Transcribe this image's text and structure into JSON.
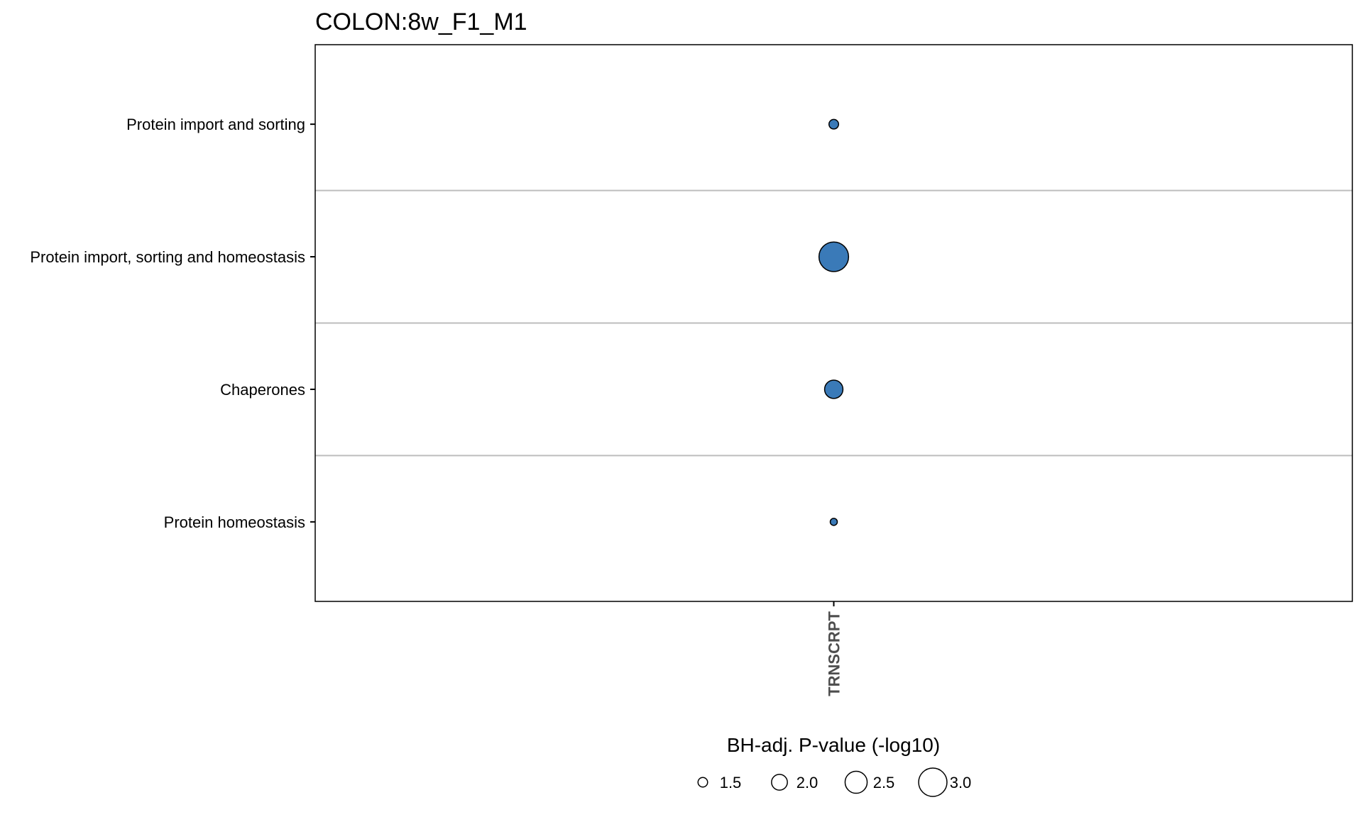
{
  "chart_data": {
    "type": "scatter",
    "title": "COLON:8w_F1_M1",
    "xlabel": "",
    "ylabel": "",
    "categories_x": [
      "TRNSCRPT"
    ],
    "categories_y": [
      "Protein import and sorting",
      "Protein import, sorting and homeostasis",
      "Chaperones",
      "Protein homeostasis"
    ],
    "points": [
      {
        "x": "TRNSCRPT",
        "y": "Protein import and sorting",
        "size_value": 1.5
      },
      {
        "x": "TRNSCRPT",
        "y": "Protein import, sorting and homeostasis",
        "size_value": 3.1
      },
      {
        "x": "TRNSCRPT",
        "y": "Chaperones",
        "size_value": 2.2
      },
      {
        "x": "TRNSCRPT",
        "y": "Protein homeostasis",
        "size_value": 1.3
      }
    ],
    "size_legend": {
      "title": "BH-adj. P-value (-log10)",
      "values": [
        1.5,
        2.0,
        2.5,
        3.0
      ],
      "labels": [
        "1.5",
        "2.0",
        "2.5",
        "3.0"
      ],
      "placement": "bottom"
    },
    "point_color": "#3a7ab8",
    "point_edge_color": "#000000",
    "grid_color": "#bebebe",
    "grid": "horizontal separators between rows"
  }
}
